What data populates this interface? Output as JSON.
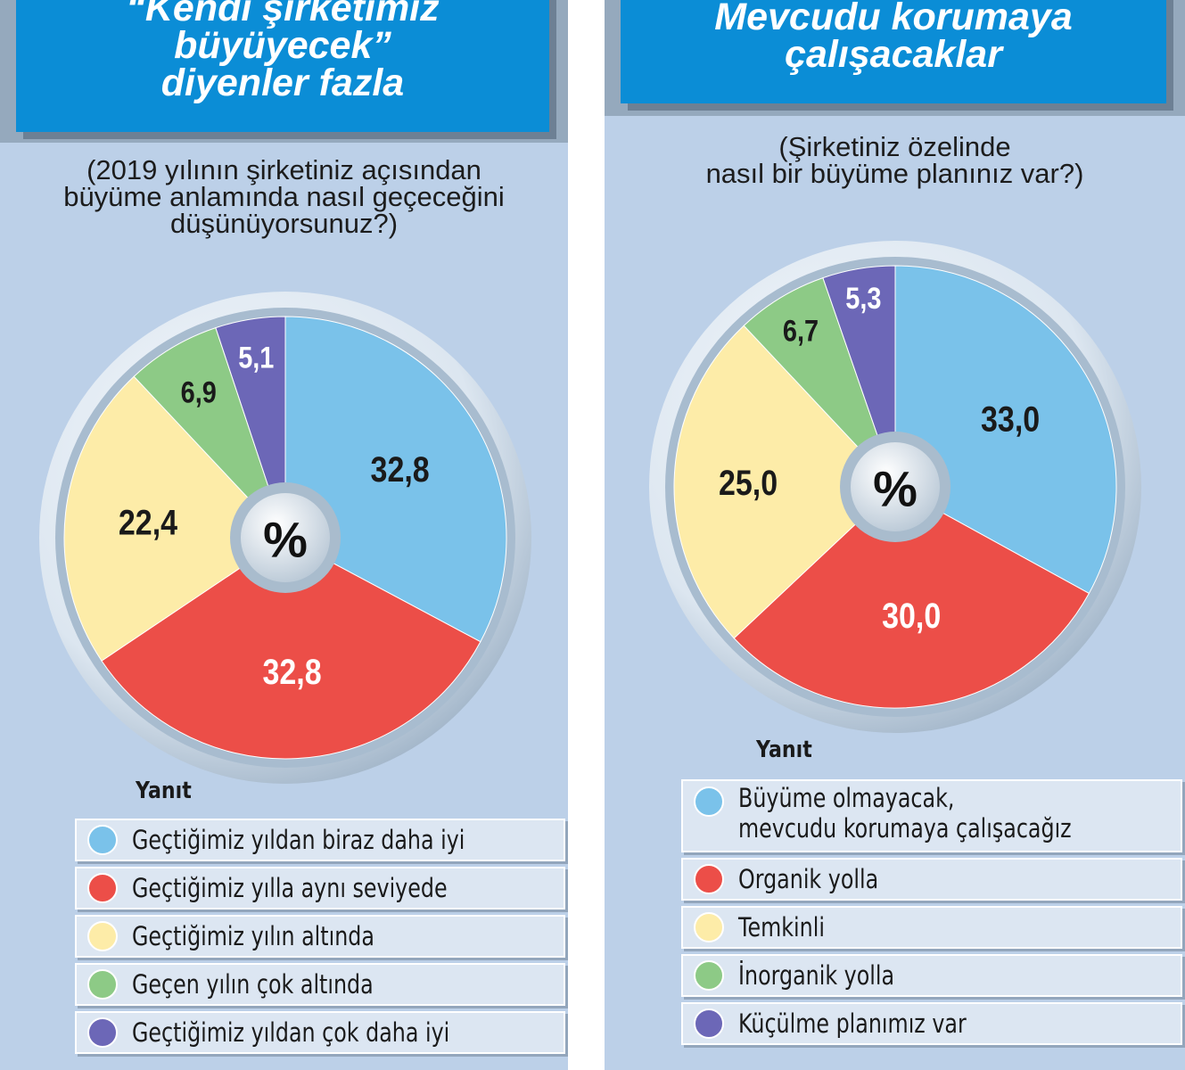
{
  "colors": {
    "blue": "#7ac2ea",
    "blue_edge": "#0a8ed8",
    "red": "#ec4e48",
    "red_edge": "#d5322f",
    "yellow": "#fdeca8",
    "green": "#8dca86",
    "purple": "#6c67b7",
    "title_bg": "#0b8dd6",
    "panel_bg": "#bcd0e8"
  },
  "left": {
    "title_lines": [
      "“Kendi şirketimiz",
      "büyüyecek”",
      "diyenler fazla"
    ],
    "question_lines": [
      "(2019 yılının şirketiniz açısından",
      "büyüme anlamında nasıl geçeceğini",
      "düşünüyorsunuz?)"
    ],
    "center_symbol": "%",
    "legend_title": "Yanıt",
    "legend": [
      {
        "lines": [
          "Geçtiğimiz yıldan biraz daha iyi"
        ],
        "color_key": "blue",
        "icon": "legend-dot-icon"
      },
      {
        "lines": [
          "Geçtiğimiz yılla aynı seviyede"
        ],
        "color_key": "red",
        "icon": "legend-dot-icon"
      },
      {
        "lines": [
          "Geçtiğimiz yılın altında"
        ],
        "color_key": "yellow",
        "icon": "legend-dot-icon"
      },
      {
        "lines": [
          "Geçen yılın çok altında"
        ],
        "color_key": "green",
        "icon": "legend-dot-icon"
      },
      {
        "lines": [
          "Geçtiğimiz yıldan çok daha iyi"
        ],
        "color_key": "purple",
        "icon": "legend-dot-icon"
      }
    ]
  },
  "right": {
    "title_lines": [
      "Mevcudu korumaya",
      "çalışacaklar"
    ],
    "question_lines": [
      "(Şirketiniz özelinde",
      "nasıl bir büyüme planınız var?)"
    ],
    "center_symbol": "%",
    "legend_title": "Yanıt",
    "legend": [
      {
        "lines": [
          "Büyüme olmayacak,",
          "mevcudu korumaya çalışacağız"
        ],
        "color_key": "blue",
        "icon": "legend-dot-icon"
      },
      {
        "lines": [
          "Organik yolla"
        ],
        "color_key": "red",
        "icon": "legend-dot-icon"
      },
      {
        "lines": [
          "Temkinli"
        ],
        "color_key": "yellow",
        "icon": "legend-dot-icon"
      },
      {
        "lines": [
          "İnorganik yolla"
        ],
        "color_key": "green",
        "icon": "legend-dot-icon"
      },
      {
        "lines": [
          "Küçülme planımız var"
        ],
        "color_key": "purple",
        "icon": "legend-dot-icon"
      }
    ]
  },
  "chart_data": [
    {
      "type": "pie",
      "title": "“Kendi şirketimiz büyüyecek” diyenler fazla",
      "subtitle": "(2019 yılının şirketiniz açısından büyüme anlamında nasıl geçeceğini düşünüyorsunuz?)",
      "unit": "%",
      "legend_title": "Yanıt",
      "slices": [
        {
          "label": "Geçtiğimiz yıldan biraz daha iyi",
          "value": 32.8,
          "display": "32,8",
          "color_key": "blue"
        },
        {
          "label": "Geçtiğimiz yılla aynı seviyede",
          "value": 32.8,
          "display": "32,8",
          "color_key": "red"
        },
        {
          "label": "Geçtiğimiz yılın altında",
          "value": 22.4,
          "display": "22,4",
          "color_key": "yellow"
        },
        {
          "label": "Geçen yılın çok altında",
          "value": 6.9,
          "display": "6,9",
          "color_key": "green"
        },
        {
          "label": "Geçtiğimiz yıldan çok daha iyi",
          "value": 5.1,
          "display": "5,1",
          "color_key": "purple"
        }
      ]
    },
    {
      "type": "pie",
      "title": "Mevcudu korumaya çalışacaklar",
      "subtitle": "(Şirketiniz özelinde nasıl bir büyüme planınız var?)",
      "unit": "%",
      "legend_title": "Yanıt",
      "slices": [
        {
          "label": "Büyüme olmayacak, mevcudu korumaya çalışacağız",
          "value": 33.0,
          "display": "33,0",
          "color_key": "blue"
        },
        {
          "label": "Organik yolla",
          "value": 30.0,
          "display": "30,0",
          "color_key": "red"
        },
        {
          "label": "Temkinli",
          "value": 25.0,
          "display": "25,0",
          "color_key": "yellow"
        },
        {
          "label": "İnorganik yolla",
          "value": 6.7,
          "display": "6,7",
          "color_key": "green"
        },
        {
          "label": "Küçülme planımız var",
          "value": 5.3,
          "display": "5,3",
          "color_key": "purple"
        }
      ]
    }
  ]
}
